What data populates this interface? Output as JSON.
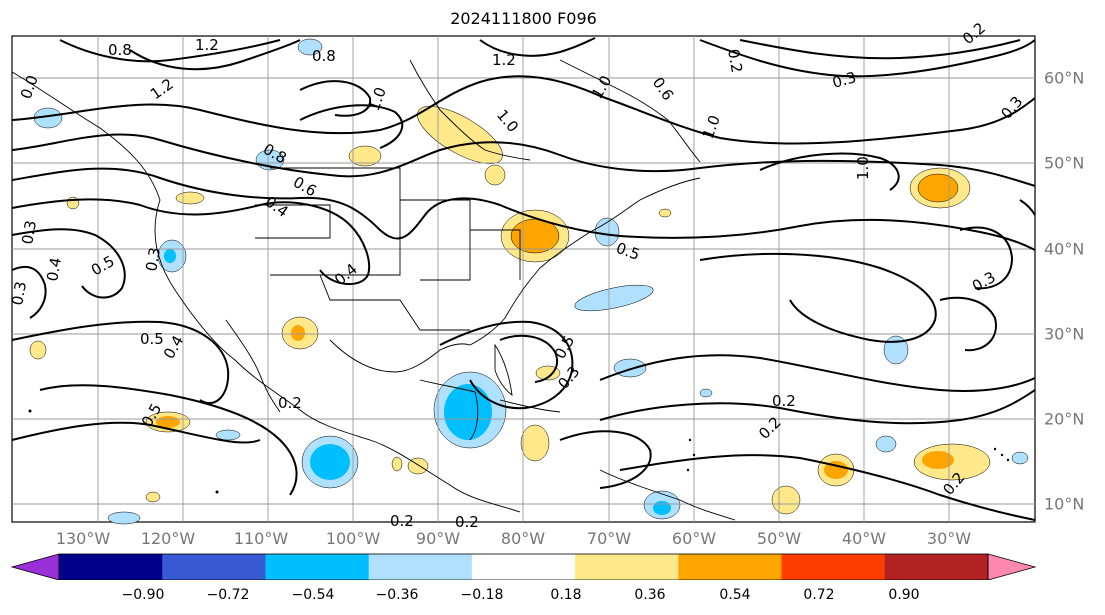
{
  "title": "2024111800 F096",
  "longitude_labels": [
    "130°W",
    "120°W",
    "110°W",
    "100°W",
    "90°W",
    "80°W",
    "70°W",
    "60°W",
    "50°W",
    "40°W",
    "30°W"
  ],
  "latitude_labels": [
    "60°N",
    "50°N",
    "40°N",
    "30°N",
    "20°N",
    "10°N"
  ],
  "colorbar": {
    "tick_labels": [
      "−0.90",
      "−0.72",
      "−0.54",
      "−0.36",
      "−0.18",
      "0.18",
      "0.36",
      "0.54",
      "0.72",
      "0.90"
    ],
    "colors": [
      "#9b30d9",
      "#00008b",
      "#3759d1",
      "#00bfff",
      "#afe1ff",
      "#ffffff",
      "#ffe88a",
      "#ffa500",
      "#ff3c00",
      "#b22222",
      "#ff88b0"
    ]
  },
  "contour_labels": [
    "1.2",
    "0.8",
    "1.2",
    "0.8",
    "1.0",
    "1.2",
    "0.0",
    "1.0",
    "1.0",
    "0.6",
    "0.4",
    "0.3",
    "0.8",
    "1.0",
    "0.3",
    "0.3",
    "0.4",
    "0.5",
    "0.4",
    "0.5",
    "0.3",
    "0.5",
    "0.5",
    "0.5",
    "0.3",
    "0.2",
    "0.2",
    "0.2",
    "0.2",
    "0.2",
    "0.6",
    "1.0",
    "0.3",
    "0.3",
    "0.4",
    "0.2",
    "0.2",
    "0.2"
  ]
}
